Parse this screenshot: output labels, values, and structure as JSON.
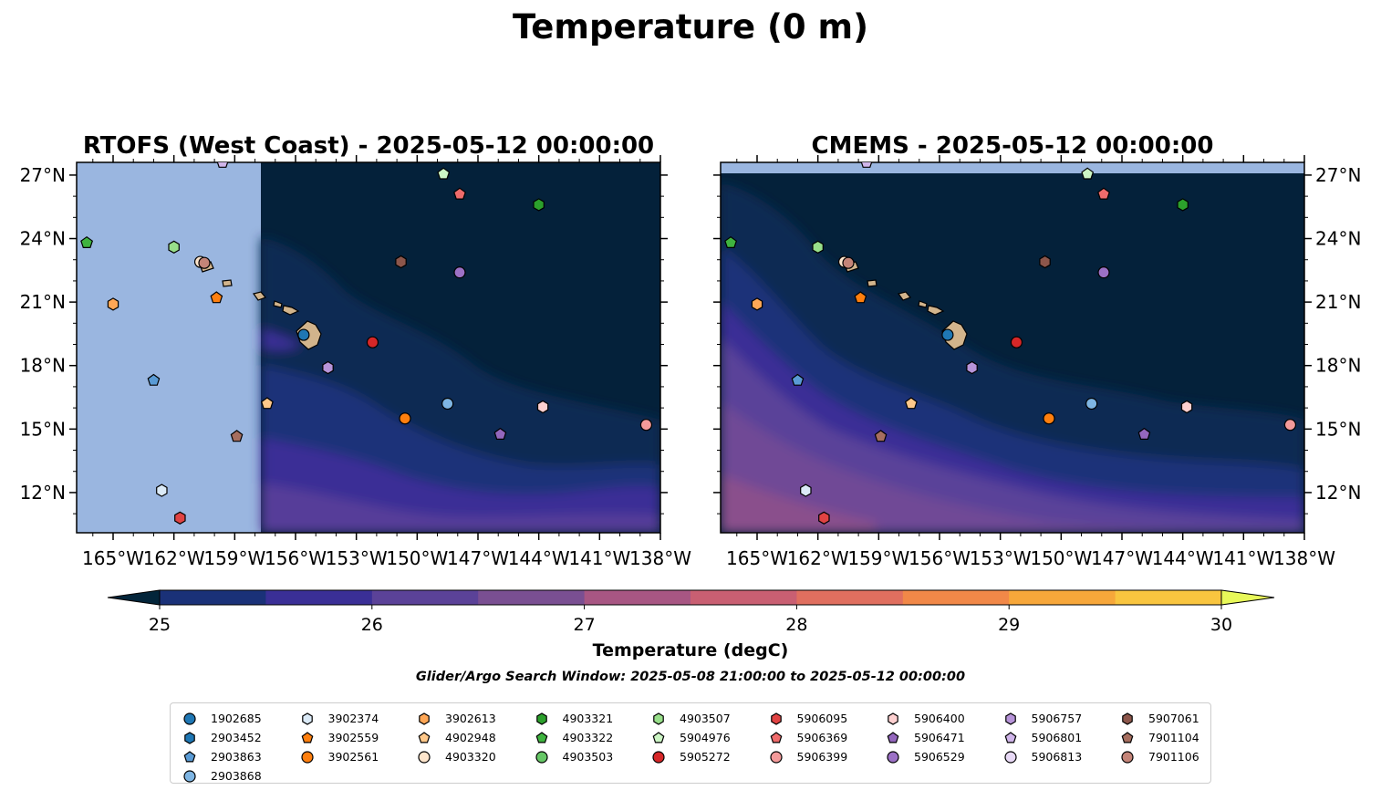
{
  "figure": {
    "suptitle": "Temperature (0 m)",
    "search_window": "Glider/Argo Search Window: 2025-05-08 21:00:00 to 2025-05-12 00:00:00"
  },
  "chart_data": [
    {
      "type": "heatmap",
      "title": "RTOFS (West Coast) - 2025-05-12 00:00:00",
      "x_ticks": [
        "165°W",
        "162°W",
        "159°W",
        "156°W",
        "153°W",
        "150°W",
        "147°W",
        "144°W",
        "141°W",
        "138°W"
      ],
      "y_ticks": [
        "27°N",
        "24°N",
        "21°N",
        "18°N",
        "15°N",
        "12°N"
      ],
      "x_values": [
        -165,
        -162,
        -159,
        -156,
        -153,
        -150,
        -147,
        -144,
        -141,
        -138
      ],
      "y_values": [
        27,
        24,
        21,
        18,
        15,
        12
      ],
      "xlim": [
        -166.8,
        -138
      ],
      "ylim": [
        10.1,
        27.6
      ],
      "no_data_west_of": -157.7
    },
    {
      "type": "heatmap",
      "title": "CMEMS - 2025-05-12 00:00:00",
      "x_ticks": [
        "165°W",
        "162°W",
        "159°W",
        "156°W",
        "153°W",
        "150°W",
        "147°W",
        "144°W",
        "141°W",
        "138°W"
      ],
      "y_ticks": [
        "27°N",
        "24°N",
        "21°N",
        "18°N",
        "15°N",
        "12°N"
      ],
      "x_values": [
        -165,
        -162,
        -159,
        -156,
        -153,
        -150,
        -147,
        -144,
        -141,
        -138
      ],
      "y_values": [
        27,
        24,
        21,
        18,
        15,
        12
      ],
      "xlim": [
        -166.8,
        -138
      ],
      "ylim": [
        10.1,
        27.6
      ],
      "no_data_north_of": 27.1
    }
  ],
  "colorbar": {
    "label": "Temperature (degC)",
    "ticks": [
      "25",
      "26",
      "27",
      "28",
      "29",
      "30"
    ],
    "tick_values": [
      25,
      26,
      27,
      28,
      29,
      30
    ],
    "range": [
      25,
      30
    ],
    "extend": "both",
    "colors": [
      "#03253a",
      "#1a3178",
      "#3a2f96",
      "#5b4298",
      "#7a4f92",
      "#a85683",
      "#c95f72",
      "#e06f5f",
      "#f18848",
      "#f7a73a",
      "#f9c53f",
      "#e8f859"
    ]
  },
  "colors": {
    "land": "#d2b48c",
    "nodata": "#9ab6e0"
  },
  "floats": [
    {
      "id": "1902685",
      "marker": "circle",
      "color": "#1f77b4",
      "lon": -155.6,
      "lat": 19.45
    },
    {
      "id": "2903452",
      "marker": "hexagon",
      "color": "#1f77b4",
      "lon": null,
      "lat": null
    },
    {
      "id": "2903863",
      "marker": "pentagon",
      "color": "#5a9bd5",
      "lon": -163.0,
      "lat": 17.3
    },
    {
      "id": "2903868",
      "marker": "circle",
      "color": "#7eb5e3",
      "lon": -148.5,
      "lat": 16.2
    },
    {
      "id": "3902374",
      "marker": "hexagon",
      "color": "#dbeaf7",
      "lon": -162.6,
      "lat": 12.1
    },
    {
      "id": "3902559",
      "marker": "pentagon",
      "color": "#ff7f0e",
      "lon": -159.9,
      "lat": 21.2
    },
    {
      "id": "3902561",
      "marker": "circle",
      "color": "#ff7f0e",
      "lon": -150.6,
      "lat": 15.5
    },
    {
      "id": "3902613",
      "marker": "hexagon",
      "color": "#ffa756",
      "lon": -165.0,
      "lat": 20.9
    },
    {
      "id": "4902948",
      "marker": "pentagon",
      "color": "#ffc88a",
      "lon": -157.4,
      "lat": 16.2
    },
    {
      "id": "4903320",
      "marker": "circle",
      "color": "#fde5cc",
      "lon": -160.7,
      "lat": 22.9
    },
    {
      "id": "4903321",
      "marker": "hexagon",
      "color": "#2ca02c",
      "lon": -144.0,
      "lat": 25.6
    },
    {
      "id": "4903322",
      "marker": "pentagon",
      "color": "#3fb33f",
      "lon": -166.3,
      "lat": 23.8
    },
    {
      "id": "4903503",
      "marker": "circle",
      "color": "#66c766",
      "lon": null,
      "lat": null
    },
    {
      "id": "4903507",
      "marker": "hexagon",
      "color": "#98df8a",
      "lon": -162.0,
      "lat": 23.6
    },
    {
      "id": "5904976",
      "marker": "pentagon",
      "color": "#ccf5c4",
      "lon": -148.7,
      "lat": 27.05
    },
    {
      "id": "5905272",
      "marker": "circle",
      "color": "#d62728",
      "lon": -152.2,
      "lat": 19.1
    },
    {
      "id": "5906095",
      "marker": "hexagon",
      "color": "#e04343",
      "lon": -161.7,
      "lat": 10.8
    },
    {
      "id": "5906369",
      "marker": "pentagon",
      "color": "#ef6b6b",
      "lon": -147.9,
      "lat": 26.1
    },
    {
      "id": "5906399",
      "marker": "circle",
      "color": "#f49a9a",
      "lon": -138.7,
      "lat": 15.2
    },
    {
      "id": "5906400",
      "marker": "hexagon",
      "color": "#fdd0d0",
      "lon": -143.8,
      "lat": 16.05
    },
    {
      "id": "5906471",
      "marker": "pentagon",
      "color": "#9467bd",
      "lon": -145.9,
      "lat": 14.75
    },
    {
      "id": "5906529",
      "marker": "circle",
      "color": "#9c71c6",
      "lon": -147.9,
      "lat": 22.4
    },
    {
      "id": "5906757",
      "marker": "hexagon",
      "color": "#b794d9",
      "lon": -154.4,
      "lat": 17.9
    },
    {
      "id": "5906801",
      "marker": "pentagon",
      "color": "#d0b5ea",
      "lon": -159.6,
      "lat": 27.6
    },
    {
      "id": "5906813",
      "marker": "circle",
      "color": "#e8d9f6",
      "lon": null,
      "lat": null
    },
    {
      "id": "5907061",
      "marker": "hexagon",
      "color": "#8c564b",
      "lon": -150.8,
      "lat": 22.9
    },
    {
      "id": "7901104",
      "marker": "pentagon",
      "color": "#a66e5f",
      "lon": -158.9,
      "lat": 14.65
    },
    {
      "id": "7901106",
      "marker": "circle",
      "color": "#c48478",
      "lon": -160.5,
      "lat": 22.85
    }
  ]
}
